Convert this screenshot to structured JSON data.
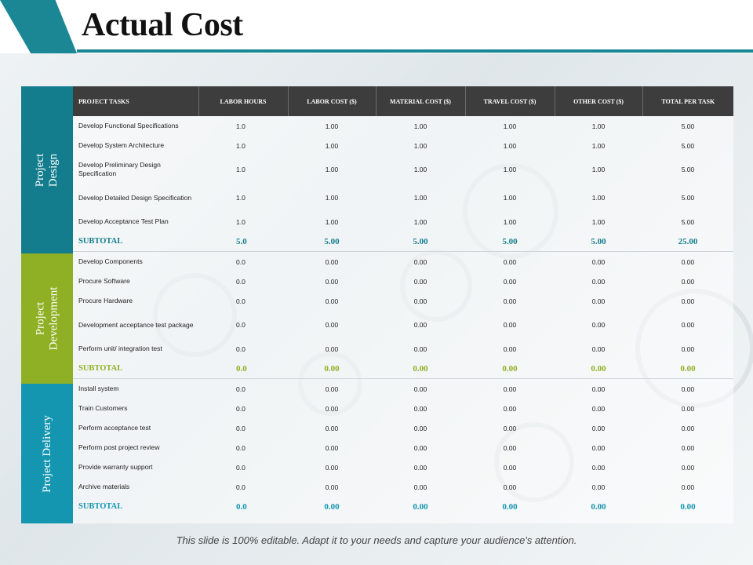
{
  "title": "Actual Cost",
  "headers": [
    "PROJECT TASKS",
    "LABOR HOURS",
    "LABOR COST ($)",
    "MATERIAL COST ($)",
    "TRAVEL COST ($)",
    "OTHER COST ($)",
    "TOTAL PER TASK"
  ],
  "groups": [
    {
      "name": "Project Design",
      "color": "#137d8d",
      "rows": [
        {
          "task": "Develop Functional Specifications",
          "values": [
            "1.0",
            "1.00",
            "1.00",
            "1.00",
            "1.00",
            "5.00"
          ]
        },
        {
          "task": "Develop System Architecture",
          "values": [
            "1.0",
            "1.00",
            "1.00",
            "1.00",
            "1.00",
            "5.00"
          ]
        },
        {
          "task": "Develop Preliminary Design Specification",
          "values": [
            "1.0",
            "1.00",
            "1.00",
            "1.00",
            "1.00",
            "5.00"
          ]
        },
        {
          "task": "Develop Detailed Design Specification",
          "values": [
            "1.0",
            "1.00",
            "1.00",
            "1.00",
            "1.00",
            "5.00"
          ]
        },
        {
          "task": "Develop Acceptance Test Plan",
          "values": [
            "1.0",
            "1.00",
            "1.00",
            "1.00",
            "1.00",
            "5.00"
          ]
        }
      ],
      "subtotal": {
        "label": "SUBTOTAL",
        "values": [
          "5.0",
          "5.00",
          "5.00",
          "5.00",
          "5.00",
          "25.00"
        ]
      }
    },
    {
      "name": "Project Development",
      "color": "#8fb024",
      "rows": [
        {
          "task": "Develop Components",
          "values": [
            "0.0",
            "0.00",
            "0.00",
            "0.00",
            "0.00",
            "0.00"
          ]
        },
        {
          "task": "Procure Software",
          "values": [
            "0.0",
            "0.00",
            "0.00",
            "0.00",
            "0.00",
            "0.00"
          ]
        },
        {
          "task": "Procure Hardware",
          "values": [
            "0.0",
            "0.00",
            "0.00",
            "0.00",
            "0.00",
            "0.00"
          ]
        },
        {
          "task": "Development acceptance test package",
          "values": [
            "0.0",
            "0.00",
            "0.00",
            "0.00",
            "0.00",
            "0.00"
          ]
        },
        {
          "task": "Perform unit/ integration test",
          "values": [
            "0.0",
            "0.00",
            "0.00",
            "0.00",
            "0.00",
            "0.00"
          ]
        }
      ],
      "subtotal": {
        "label": "SUBTOTAL",
        "values": [
          "0.0",
          "0.00",
          "0.00",
          "0.00",
          "0.00",
          "0.00"
        ]
      }
    },
    {
      "name": "Project Delivery",
      "color": "#1596b0",
      "rows": [
        {
          "task": "Install system",
          "values": [
            "0.0",
            "0.00",
            "0.00",
            "0.00",
            "0.00",
            "0.00"
          ]
        },
        {
          "task": "Train Customers",
          "values": [
            "0.0",
            "0.00",
            "0.00",
            "0.00",
            "0.00",
            "0.00"
          ]
        },
        {
          "task": "Perform acceptance test",
          "values": [
            "0.0",
            "0.00",
            "0.00",
            "0.00",
            "0.00",
            "0.00"
          ]
        },
        {
          "task": "Perform post project review",
          "values": [
            "0.0",
            "0.00",
            "0.00",
            "0.00",
            "0.00",
            "0.00"
          ]
        },
        {
          "task": "Provide warranty support",
          "values": [
            "0.0",
            "0.00",
            "0.00",
            "0.00",
            "0.00",
            "0.00"
          ]
        },
        {
          "task": "Archive materials",
          "values": [
            "0.0",
            "0.00",
            "0.00",
            "0.00",
            "0.00",
            "0.00"
          ]
        }
      ],
      "subtotal": {
        "label": "SUBTOTAL",
        "values": [
          "0.0",
          "0.00",
          "0.00",
          "0.00",
          "0.00",
          "0.00"
        ]
      }
    }
  ],
  "footer": "This slide is 100% editable. Adapt it to your needs and capture your audience's attention."
}
